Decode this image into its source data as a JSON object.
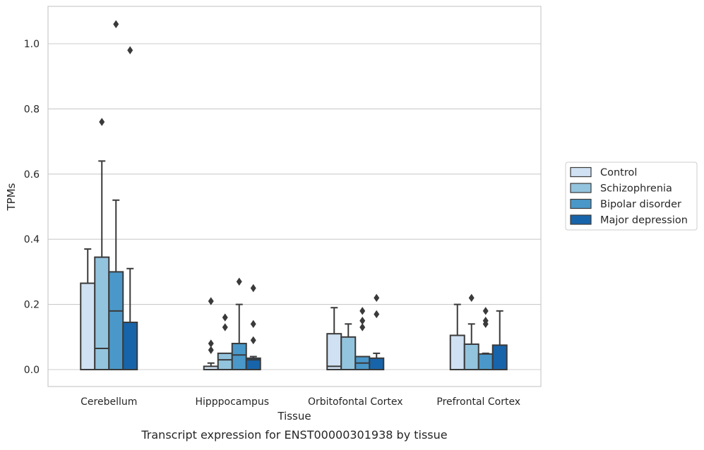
{
  "caption": "Transcript expression for ENST00000301938 by tissue",
  "colors": {
    "Control": "#cfe1f2",
    "Schizophrenia": "#93c4de",
    "Bipolar disorder": "#4a98c9",
    "Major depression": "#1764ab",
    "edge": "#3a3a3a",
    "grid": "#cccccc",
    "frame": "#cccccc"
  },
  "chart_data": {
    "type": "box",
    "xlabel": "Tissue",
    "ylabel": "TPMs",
    "ylim": [
      -0.05,
      1.12
    ],
    "yticks": [
      0.0,
      0.2,
      0.4,
      0.6,
      0.8,
      1.0
    ],
    "ytick_labels": [
      "0.0",
      "0.2",
      "0.4",
      "0.6",
      "0.8",
      "1.0"
    ],
    "grid": "horizontal",
    "legend_position": "right",
    "categories": [
      "Cerebellum",
      "Hipppocampus",
      "Orbitofontal Cortex",
      "Prefrontal Cortex"
    ],
    "series": [
      {
        "name": "Control",
        "boxes": [
          {
            "min": 0.0,
            "q1": 0.0,
            "median": 0.0,
            "q3": 0.265,
            "max": 0.37,
            "outliers": []
          },
          {
            "min": 0.0,
            "q1": 0.0,
            "median": 0.0,
            "q3": 0.01,
            "max": 0.02,
            "outliers": [
              0.06,
              0.08,
              0.21
            ]
          },
          {
            "min": 0.0,
            "q1": 0.0,
            "median": 0.01,
            "q3": 0.11,
            "max": 0.19,
            "outliers": []
          },
          {
            "min": 0.0,
            "q1": 0.0,
            "median": 0.0,
            "q3": 0.105,
            "max": 0.2,
            "outliers": []
          }
        ]
      },
      {
        "name": "Schizophrenia",
        "boxes": [
          {
            "min": 0.0,
            "q1": 0.0,
            "median": 0.065,
            "q3": 0.345,
            "max": 0.64,
            "outliers": [
              0.76
            ]
          },
          {
            "min": 0.0,
            "q1": 0.0,
            "median": 0.03,
            "q3": 0.05,
            "max": 0.05,
            "outliers": [
              0.13,
              0.16
            ]
          },
          {
            "min": 0.0,
            "q1": 0.0,
            "median": 0.0,
            "q3": 0.1,
            "max": 0.14,
            "outliers": []
          },
          {
            "min": 0.0,
            "q1": 0.0,
            "median": 0.0,
            "q3": 0.078,
            "max": 0.14,
            "outliers": [
              0.22
            ]
          }
        ]
      },
      {
        "name": "Bipolar disorder",
        "boxes": [
          {
            "min": 0.0,
            "q1": 0.0,
            "median": 0.18,
            "q3": 0.3,
            "max": 0.52,
            "outliers": [
              1.06
            ]
          },
          {
            "min": 0.0,
            "q1": 0.0,
            "median": 0.045,
            "q3": 0.08,
            "max": 0.2,
            "outliers": [
              0.27
            ]
          },
          {
            "min": 0.0,
            "q1": 0.0,
            "median": 0.02,
            "q3": 0.04,
            "max": 0.04,
            "outliers": [
              0.13,
              0.15,
              0.18
            ]
          },
          {
            "min": 0.0,
            "q1": 0.0,
            "median": 0.0,
            "q3": 0.048,
            "max": 0.05,
            "outliers": [
              0.14,
              0.15,
              0.18
            ]
          }
        ]
      },
      {
        "name": "Major depression",
        "boxes": [
          {
            "min": 0.0,
            "q1": 0.0,
            "median": 0.0,
            "q3": 0.145,
            "max": 0.31,
            "outliers": [
              0.98
            ]
          },
          {
            "min": 0.0,
            "q1": 0.0,
            "median": 0.03,
            "q3": 0.035,
            "max": 0.04,
            "outliers": [
              0.09,
              0.14,
              0.25
            ]
          },
          {
            "min": 0.0,
            "q1": 0.0,
            "median": 0.0,
            "q3": 0.035,
            "max": 0.05,
            "outliers": [
              0.17,
              0.22
            ]
          },
          {
            "min": 0.0,
            "q1": 0.0,
            "median": 0.0,
            "q3": 0.075,
            "max": 0.18,
            "outliers": []
          }
        ]
      }
    ]
  }
}
